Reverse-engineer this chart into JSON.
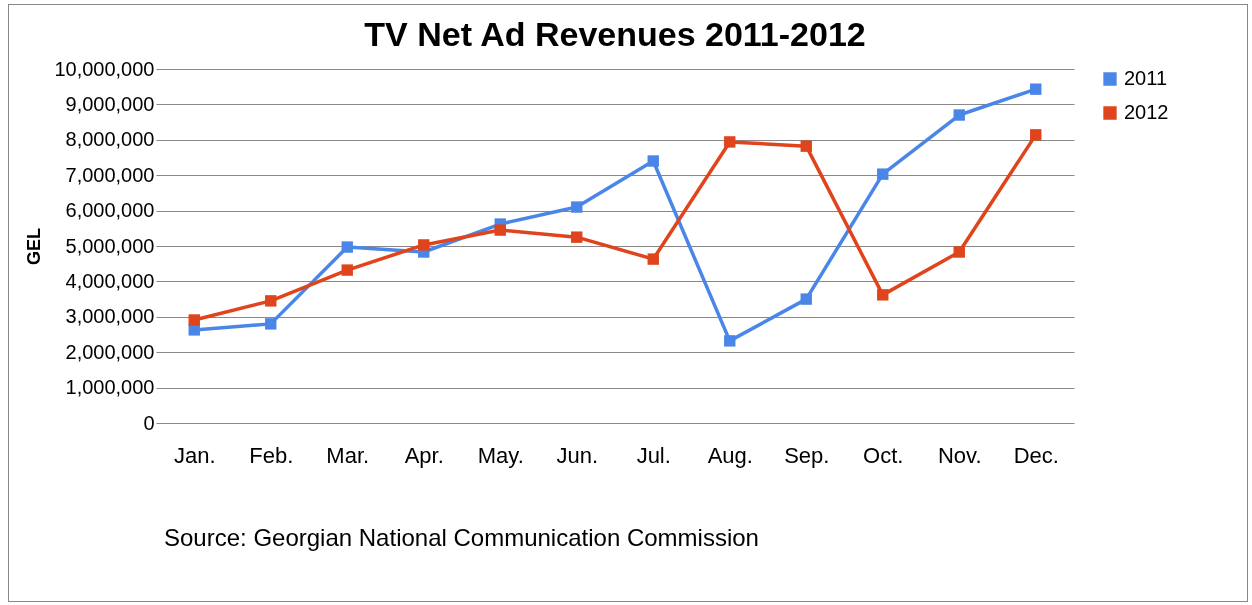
{
  "chart_data": {
    "type": "line",
    "title": "TV Net Ad Revenues 2011-2012",
    "ylabel": "GEL",
    "categories": [
      "Jan.",
      "Feb.",
      "Mar.",
      "Apr.",
      "May.",
      "Jun.",
      "Jul.",
      "Aug.",
      "Sep.",
      "Oct.",
      "Nov.",
      "Dec."
    ],
    "series": [
      {
        "name": "2011",
        "color": "#4a86e8",
        "values": [
          2630000,
          2800000,
          4970000,
          4830000,
          5620000,
          6100000,
          7400000,
          2320000,
          3500000,
          7030000,
          8700000,
          9430000
        ]
      },
      {
        "name": "2012",
        "color": "#e0441c",
        "values": [
          2910000,
          3450000,
          4320000,
          5030000,
          5450000,
          5250000,
          4630000,
          7940000,
          7820000,
          3620000,
          4830000,
          8140000
        ]
      }
    ],
    "ylim": [
      0,
      10000000
    ],
    "yticks": [
      0,
      {
        "value": 1000000,
        "label": "1,000,000"
      },
      {
        "value": 2000000,
        "label": "2,000,000"
      },
      {
        "value": 3000000,
        "label": "3,000,000"
      },
      {
        "value": 4000000,
        "label": "4,000,000"
      },
      {
        "value": 5000000,
        "label": "5,000,000"
      },
      {
        "value": 6000000,
        "label": "6,000,000"
      },
      {
        "value": 7000000,
        "label": "7,000,000"
      },
      {
        "value": 8000000,
        "label": "8,000,000"
      },
      {
        "value": 9000000,
        "label": "9,000,000"
      },
      {
        "value": 10000000,
        "label": "10,000,000"
      }
    ],
    "grid": "y",
    "legend": "right",
    "marker": "square",
    "line_style": "solid",
    "annotations": [
      "Source: Georgian National Communication Commission"
    ]
  }
}
